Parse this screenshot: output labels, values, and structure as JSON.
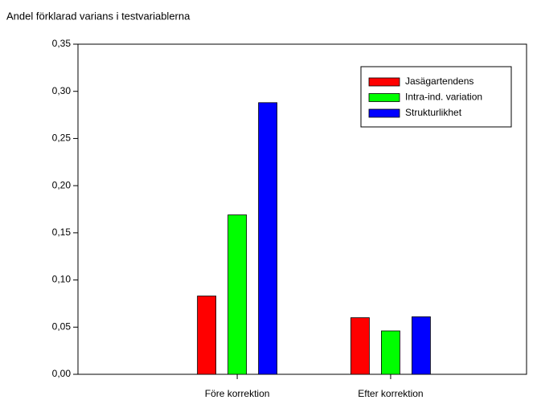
{
  "chart_data": {
    "type": "bar",
    "title": "Andel förklarad varians i testvariablerna",
    "categories": [
      "Före korrektion",
      "Efter korrektion"
    ],
    "series": [
      {
        "name": "Jasägartendens",
        "color": "#ff0000",
        "values": [
          0.083,
          0.06
        ]
      },
      {
        "name": "Intra-ind. variation",
        "color": "#00ff00",
        "values": [
          0.169,
          0.046
        ]
      },
      {
        "name": "Strukturlikhet",
        "color": "#0000ff",
        "values": [
          0.288,
          0.061
        ]
      }
    ],
    "ylim": [
      0,
      0.35
    ],
    "yticks": [
      {
        "value": 0,
        "label": "0,00"
      },
      {
        "value": 0.05,
        "label": "0,05"
      },
      {
        "value": 0.1,
        "label": "0,10"
      },
      {
        "value": 0.15,
        "label": "0,15"
      },
      {
        "value": 0.2,
        "label": "0,20"
      },
      {
        "value": 0.25,
        "label": "0,25"
      },
      {
        "value": 0.3,
        "label": "0,30"
      },
      {
        "value": 0.35,
        "label": "0,35"
      }
    ],
    "legend": "upper right",
    "grid": false
  }
}
